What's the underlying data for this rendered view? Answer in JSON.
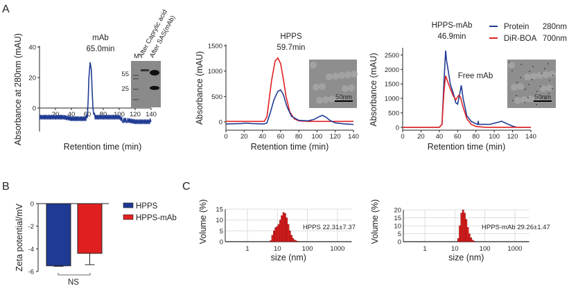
{
  "panels": {
    "a": "A",
    "b": "B",
    "c": "C"
  },
  "chart_data": [
    {
      "type": "line",
      "panel": "A",
      "title": [
        "mAb",
        "65.0min"
      ],
      "xlabel": "Retention time (min)",
      "ylabel": "Absorbance at 280nm (mAU)",
      "xlim": [
        0,
        140
      ],
      "ylim": [
        -10,
        40
      ],
      "xticks": [
        20,
        40,
        60,
        80,
        100,
        120,
        140
      ],
      "yticks": [
        0,
        20,
        40
      ],
      "series": [
        {
          "color": "#1f3a93",
          "points": [
            [
              0,
              -6
            ],
            [
              10,
              -6
            ],
            [
              20,
              -6
            ],
            [
              30,
              -6
            ],
            [
              40,
              -7
            ],
            [
              50,
              -7
            ],
            [
              58,
              -7
            ],
            [
              60,
              -5
            ],
            [
              61,
              5
            ],
            [
              62,
              20
            ],
            [
              63.5,
              30
            ],
            [
              65,
              25
            ],
            [
              66,
              12
            ],
            [
              67,
              0
            ],
            [
              68,
              -4
            ],
            [
              70,
              -6
            ],
            [
              80,
              -6
            ],
            [
              90,
              -6
            ],
            [
              100,
              -6
            ],
            [
              105,
              -8
            ],
            [
              110,
              -8
            ],
            [
              120,
              -9
            ],
            [
              130,
              -9
            ],
            [
              140,
              -9
            ]
          ]
        }
      ],
      "inset": {
        "type": "gel",
        "lanes": [
          "M",
          "After Caprylic acid",
          "After SAS(mAb)"
        ],
        "markers": [
          "55",
          "25"
        ]
      }
    },
    {
      "type": "line",
      "panel": "A",
      "title": [
        "HPPS",
        "59.7min"
      ],
      "xlabel": "Retention time (min)",
      "ylabel": "Absorbance (mAU)",
      "xlim": [
        0,
        140
      ],
      "ylim": [
        -150,
        1500
      ],
      "xticks": [
        0,
        20,
        40,
        60,
        80,
        100,
        120,
        140
      ],
      "yticks": [
        0,
        500,
        1000,
        1500
      ],
      "series": [
        {
          "color": "#e02020",
          "points": [
            [
              0,
              10
            ],
            [
              42,
              10
            ],
            [
              45,
              100
            ],
            [
              50,
              800
            ],
            [
              54,
              1200
            ],
            [
              57,
              1260
            ],
            [
              60,
              1150
            ],
            [
              63,
              850
            ],
            [
              66,
              500
            ],
            [
              70,
              200
            ],
            [
              75,
              60
            ],
            [
              80,
              20
            ],
            [
              90,
              10
            ],
            [
              140,
              10
            ]
          ]
        },
        {
          "color": "#1f3a93",
          "points": [
            [
              0,
              -40
            ],
            [
              15,
              -35
            ],
            [
              22,
              -25
            ],
            [
              30,
              -35
            ],
            [
              42,
              -40
            ],
            [
              45,
              -20
            ],
            [
              49,
              200
            ],
            [
              53,
              450
            ],
            [
              57,
              600
            ],
            [
              60,
              630
            ],
            [
              63,
              540
            ],
            [
              67,
              300
            ],
            [
              72,
              110
            ],
            [
              80,
              30
            ],
            [
              90,
              20
            ],
            [
              97,
              50
            ],
            [
              102,
              100
            ],
            [
              106,
              130
            ],
            [
              110,
              90
            ],
            [
              115,
              20
            ],
            [
              120,
              -20
            ],
            [
              130,
              -40
            ],
            [
              140,
              -50
            ]
          ]
        }
      ],
      "inset": {
        "type": "tem",
        "scale_label": "50nm"
      }
    },
    {
      "type": "line",
      "panel": "A",
      "title": [
        "HPPS-mAb",
        "46.9min"
      ],
      "annotation": "Free mAb",
      "xlabel": "Retention time (min)",
      "ylabel": "Absorbance (mAU)",
      "xlim": [
        0,
        140
      ],
      "ylim": [
        -100,
        2700
      ],
      "xticks": [
        0,
        20,
        40,
        60,
        80,
        100,
        120,
        140
      ],
      "yticks": [
        0,
        500,
        1000,
        1500,
        2000,
        2500
      ],
      "legend": {
        "placement": "top-right",
        "entries": [
          {
            "name": "Protein",
            "wl": "280nm",
            "color": "#1f3a93"
          },
          {
            "name": "DiR-BOA",
            "wl": "700nm",
            "color": "#e02020"
          }
        ]
      },
      "series": [
        {
          "name": "Protein 280nm",
          "color": "#1f3a93",
          "points": [
            [
              0,
              0
            ],
            [
              40,
              0
            ],
            [
              43,
              100
            ],
            [
              45,
              1500
            ],
            [
              46.9,
              2650
            ],
            [
              48,
              2300
            ],
            [
              52,
              1500
            ],
            [
              56,
              1100
            ],
            [
              58,
              850
            ],
            [
              60,
              800
            ],
            [
              62,
              1100
            ],
            [
              64,
              1450
            ],
            [
              66,
              1000
            ],
            [
              70,
              400
            ],
            [
              75,
              200
            ],
            [
              80,
              120
            ],
            [
              82,
              100
            ],
            [
              82.5,
              220
            ],
            [
              83,
              100
            ],
            [
              95,
              100
            ],
            [
              105,
              180
            ],
            [
              108,
              210
            ],
            [
              112,
              150
            ],
            [
              120,
              40
            ],
            [
              125,
              0
            ],
            [
              140,
              0
            ]
          ]
        },
        {
          "name": "DiR-BOA 700nm",
          "color": "#e02020",
          "points": [
            [
              0,
              0
            ],
            [
              40,
              0
            ],
            [
              43,
              100
            ],
            [
              45,
              1200
            ],
            [
              46.9,
              1780
            ],
            [
              50,
              1500
            ],
            [
              55,
              1100
            ],
            [
              58,
              950
            ],
            [
              61,
              1100
            ],
            [
              63,
              1050
            ],
            [
              66,
              700
            ],
            [
              70,
              300
            ],
            [
              75,
              100
            ],
            [
              80,
              30
            ],
            [
              90,
              0
            ],
            [
              140,
              0
            ]
          ]
        }
      ],
      "inset": {
        "type": "tem",
        "scale_label": "50nm"
      }
    },
    {
      "type": "bar",
      "panel": "B",
      "ylabel": "Zeta potential/mV",
      "ylim": [
        -6,
        0
      ],
      "yticks": [
        0,
        -2,
        -4,
        -6
      ],
      "categories": [
        "HPPS",
        "HPPS-mAb"
      ],
      "values": [
        -5.5,
        -4.4
      ],
      "errors": [
        0.05,
        1.0
      ],
      "colors": [
        "#1f3a93",
        "#e02020"
      ],
      "significance": "NS",
      "legend": {
        "placement": "right"
      }
    },
    {
      "type": "bar",
      "panel": "C",
      "xlabel": "size (nm)",
      "ylabel": "Volume (%)",
      "xscale": "log",
      "xlim": [
        0.2,
        3000
      ],
      "ylim": [
        0,
        15
      ],
      "xticks": [
        "1",
        "10",
        "100",
        "1000"
      ],
      "yticks": [
        0,
        5,
        10,
        15
      ],
      "annotation": "HPPS 22.31±7.37",
      "color": "#e02020",
      "grid": true,
      "bins": [
        [
          6,
          0.5
        ],
        [
          6.8,
          3
        ],
        [
          7.7,
          5
        ],
        [
          8.7,
          6.5
        ],
        [
          9.8,
          7
        ],
        [
          11,
          8
        ],
        [
          12.5,
          10
        ],
        [
          14,
          12
        ],
        [
          16,
          13.5
        ],
        [
          18,
          13
        ],
        [
          20.4,
          11
        ],
        [
          23,
          8
        ],
        [
          26,
          5
        ],
        [
          29.5,
          3
        ],
        [
          33,
          1.5
        ],
        [
          37.5,
          0.8
        ],
        [
          42,
          0.4
        ],
        [
          48,
          0.2
        ]
      ]
    },
    {
      "type": "bar",
      "panel": "C",
      "xlabel": "size (nm)",
      "ylabel": "Volume (%)",
      "xscale": "log",
      "xlim": [
        0.2,
        3000
      ],
      "ylim": [
        0,
        20
      ],
      "xticks": [
        "1",
        "10",
        "100",
        "1000"
      ],
      "yticks": [
        0,
        5,
        10,
        15,
        20
      ],
      "annotation": "HPPS-mAb 29.26±1.47",
      "color": "#e02020",
      "grid": true,
      "bins": [
        [
          13,
          2
        ],
        [
          14.7,
          10
        ],
        [
          16.6,
          18
        ],
        [
          18.8,
          20
        ],
        [
          21.2,
          18
        ],
        [
          24,
          14
        ],
        [
          27,
          9
        ],
        [
          30.5,
          5
        ],
        [
          34.5,
          2.5
        ],
        [
          39,
          1
        ],
        [
          44,
          0.4
        ]
      ]
    }
  ]
}
